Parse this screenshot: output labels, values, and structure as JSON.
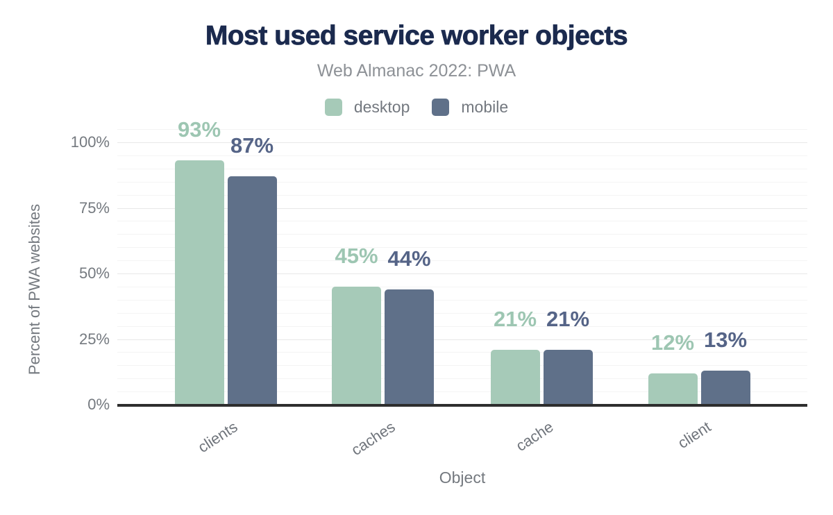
{
  "header": {
    "title": "Most used service worker objects",
    "subtitle": "Web Almanac 2022: PWA",
    "title_color": "#1b2a4e",
    "subtitle_color": "#8d9196"
  },
  "legend": {
    "position": "top",
    "text_color": "#73787f",
    "items": [
      {
        "label": "desktop",
        "color": "#a6cab8"
      },
      {
        "label": "mobile",
        "color": "#5f7089"
      }
    ]
  },
  "chart_data": {
    "type": "bar",
    "title": "Most used service worker objects",
    "subtitle": "Web Almanac 2022: PWA",
    "xlabel": "Object",
    "ylabel": "Percent of PWA websites",
    "categories": [
      "clients",
      "caches",
      "cache",
      "client"
    ],
    "series": [
      {
        "name": "desktop",
        "values": [
          93,
          45,
          21,
          12
        ],
        "bar_color": "#a6cab8",
        "label_color": "#9dc6b2"
      },
      {
        "name": "mobile",
        "values": [
          87,
          44,
          21,
          13
        ],
        "bar_color": "#5f7089",
        "label_color": "#556487"
      }
    ],
    "value_label_format": "{value}%",
    "yticks": [
      {
        "value": 0,
        "label": "0%"
      },
      {
        "value": 25,
        "label": "25%"
      },
      {
        "value": 50,
        "label": "50%"
      },
      {
        "value": 75,
        "label": "75%"
      },
      {
        "value": 100,
        "label": "100%"
      }
    ],
    "ylim": [
      0,
      105
    ],
    "grid": {
      "orientation": "horizontal",
      "minor_step": 5,
      "major_step": 25,
      "minor_color": "#f4f4f4",
      "major_color": "#e8e8e8"
    },
    "axis_line_color": "#2e2e2e",
    "tick_label_color": "#74797f",
    "category_label_color": "#6f747b",
    "axis_title_color": "#74797f",
    "legend_position": "top"
  }
}
